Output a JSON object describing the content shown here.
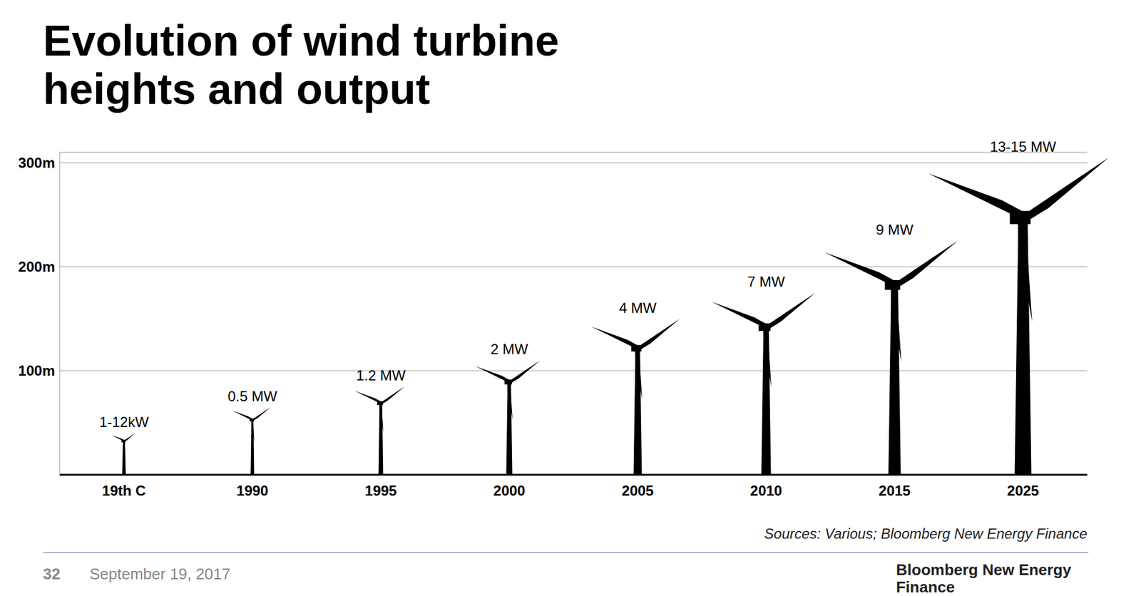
{
  "chart_data": {
    "type": "bar",
    "title": "Evolution of wind turbine heights and output",
    "categories": [
      "19th C",
      "1990",
      "1995",
      "2000",
      "2005",
      "2010",
      "2015",
      "2025"
    ],
    "values": [
      40,
      65,
      85,
      110,
      150,
      175,
      225,
      305
    ],
    "annotations": [
      "1-12kW",
      "0.5 MW",
      "1.2 MW",
      "2 MW",
      "4 MW",
      "7 MW",
      "9 MW",
      "13-15 MW"
    ],
    "color": "#000000",
    "ylim": [
      0,
      310
    ],
    "yticks": [
      {
        "value": 100,
        "label": "100m"
      },
      {
        "value": 200,
        "label": "200m"
      },
      {
        "value": 300,
        "label": "300m"
      }
    ],
    "grid": true,
    "source": "Sources: Various; Bloomberg New Energy Finance"
  },
  "footer": {
    "page": "32",
    "date": "September 19, 2017",
    "brand": "Bloomberg New Energy Finance"
  }
}
